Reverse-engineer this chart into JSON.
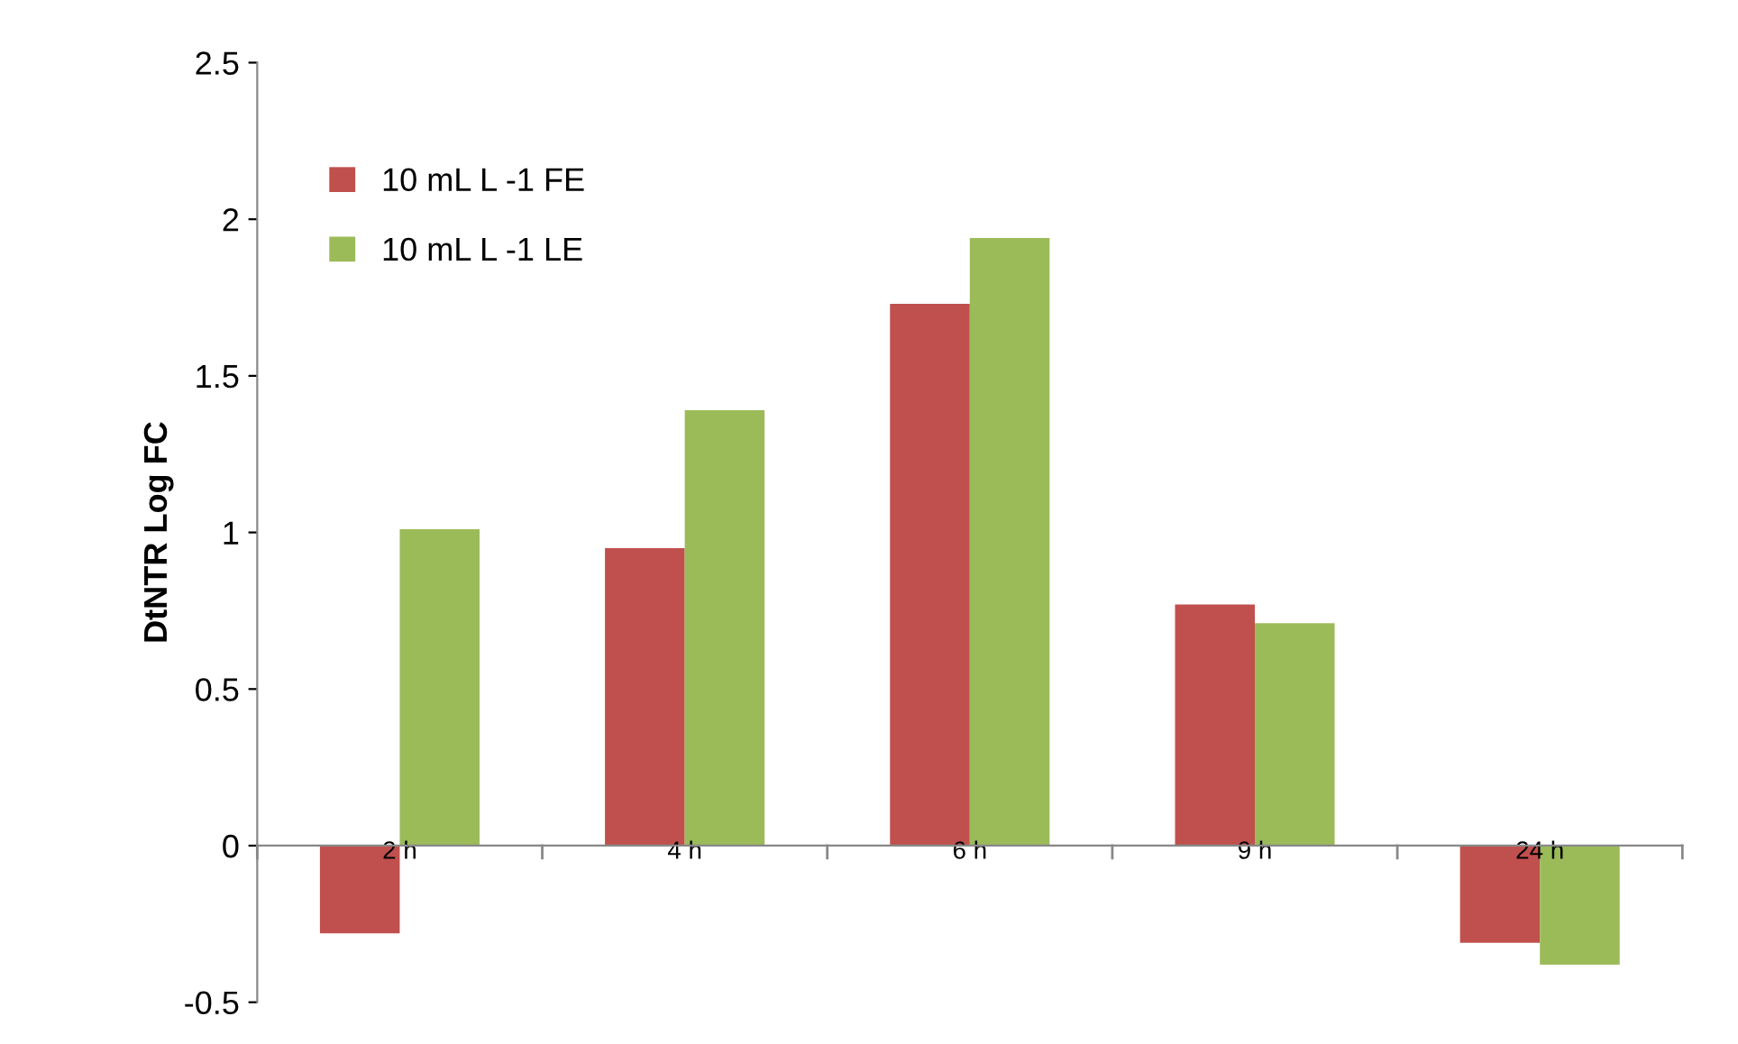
{
  "chart_data": {
    "type": "bar",
    "ylabel": "DtNTR Log FC",
    "categories": [
      "2 h",
      "4 h",
      "6 h",
      "9 h",
      "24 h"
    ],
    "series": [
      {
        "name": "10 mL L -1 FE",
        "color": "#c0504d",
        "values": [
          -0.28,
          0.95,
          1.73,
          0.77,
          -0.31
        ]
      },
      {
        "name": "10 mL L -1 LE",
        "color": "#9bbb59",
        "values": [
          1.01,
          1.39,
          1.94,
          0.71,
          -0.38
        ]
      }
    ],
    "ylim": [
      -0.5,
      2.5
    ],
    "yticks": [
      -0.5,
      0,
      0.5,
      1,
      1.5,
      2,
      2.5
    ],
    "grid": false,
    "legend": "top left"
  }
}
